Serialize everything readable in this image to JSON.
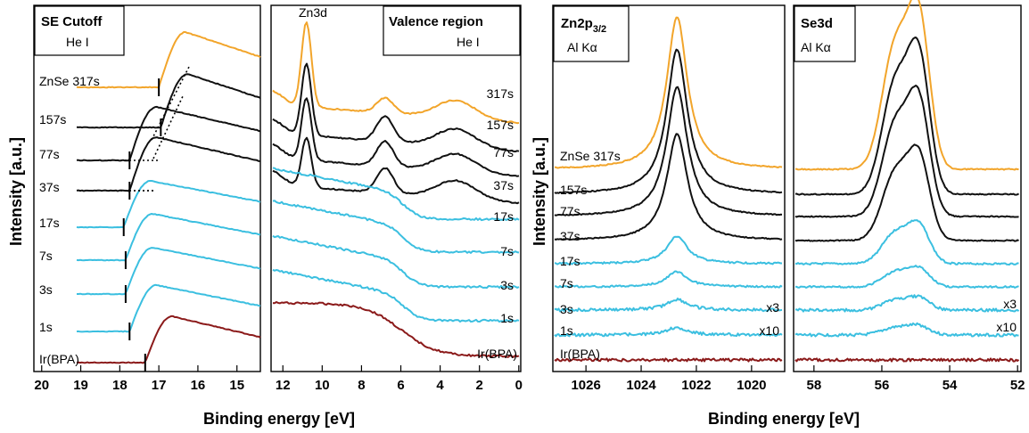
{
  "colors": {
    "orange": "#f2a52b",
    "black": "#111111",
    "cyan": "#3bbfe0",
    "darkred": "#8b1a1a"
  },
  "labels": {
    "ylabel_left": "Intensity [a.u.]",
    "ylabel_right": "Intensity [a.u.]",
    "xlabel_left": "Binding energy [eV]",
    "xlabel_right": "Binding energy [eV]"
  },
  "chart_data": [
    {
      "type": "line",
      "panel": "se-cutoff",
      "title": "SE Cutoff",
      "subtitle": "He I",
      "x_ticks": [
        "20",
        "19",
        "18",
        "17",
        "16",
        "15"
      ],
      "xlim": [
        20.2,
        14.4
      ],
      "series": [
        {
          "name": "ZnSe 317s",
          "color": "orange",
          "cutoff": 17.0
        },
        {
          "name": "157s",
          "color": "black",
          "cutoff": 16.95
        },
        {
          "name": "77s",
          "color": "black",
          "cutoff": 17.75
        },
        {
          "name": "37s",
          "color": "black",
          "cutoff": 17.75
        },
        {
          "name": "17s",
          "color": "cyan",
          "cutoff": 17.9
        },
        {
          "name": "7s",
          "color": "cyan",
          "cutoff": 17.85
        },
        {
          "name": "3s",
          "color": "cyan",
          "cutoff": 17.85
        },
        {
          "name": "1s",
          "color": "cyan",
          "cutoff": 17.75
        },
        {
          "name": "Ir(BPA)",
          "color": "darkred",
          "cutoff": 17.35
        }
      ]
    },
    {
      "type": "line",
      "panel": "valence",
      "title": "Valence region",
      "subtitle": "He I",
      "annotation": "Zn3d",
      "x_ticks": [
        "12",
        "10",
        "8",
        "6",
        "4",
        "2",
        "0"
      ],
      "xlim": [
        12.6,
        -0.1
      ],
      "series": [
        {
          "name": "317s",
          "color": "orange"
        },
        {
          "name": "157s",
          "color": "black"
        },
        {
          "name": "77s",
          "color": "black"
        },
        {
          "name": "37s",
          "color": "black"
        },
        {
          "name": "17s",
          "color": "cyan"
        },
        {
          "name": "7s",
          "color": "cyan"
        },
        {
          "name": "3s",
          "color": "cyan"
        },
        {
          "name": "1s",
          "color": "cyan"
        },
        {
          "name": "Ir(BPA)",
          "color": "darkred"
        }
      ]
    },
    {
      "type": "line",
      "panel": "zn2p",
      "title_main": "Zn2p",
      "title_sub": "3/2",
      "subtitle": "Al Kα",
      "x_ticks": [
        "1026",
        "1024",
        "1022",
        "1020"
      ],
      "xlim": [
        1027.2,
        1018.8
      ],
      "peak": 1022.7,
      "scale_labels": [
        "x3",
        "x10"
      ],
      "series": [
        {
          "name": "ZnSe 317s",
          "color": "orange",
          "amplitude": 1.0
        },
        {
          "name": "157s",
          "color": "black",
          "amplitude": 0.95
        },
        {
          "name": "77s",
          "color": "black",
          "amplitude": 0.85
        },
        {
          "name": "37s",
          "color": "black",
          "amplitude": 0.7
        },
        {
          "name": "17s",
          "color": "cyan",
          "amplitude": 0.18
        },
        {
          "name": "7s",
          "color": "cyan",
          "amplitude": 0.1
        },
        {
          "name": "3s",
          "color": "cyan",
          "amplitude": 0.07
        },
        {
          "name": "1s",
          "color": "cyan",
          "amplitude": 0.05
        },
        {
          "name": "Ir(BPA)",
          "color": "darkred",
          "amplitude": 0.0
        }
      ]
    },
    {
      "type": "line",
      "panel": "se3d",
      "title": "Se3d",
      "subtitle": "Al Kα",
      "x_ticks": [
        "58",
        "56",
        "54",
        "52"
      ],
      "xlim": [
        58.6,
        51.9
      ],
      "peaks": [
        55.6,
        54.9
      ],
      "scale_labels": [
        "x3",
        "x10"
      ],
      "series": [
        {
          "name": "ZnSe 317s",
          "color": "orange",
          "amplitude": 1.0
        },
        {
          "name": "157s",
          "color": "black",
          "amplitude": 0.9
        },
        {
          "name": "77s",
          "color": "black",
          "amplitude": 0.75
        },
        {
          "name": "37s",
          "color": "black",
          "amplitude": 0.55
        },
        {
          "name": "17s",
          "color": "cyan",
          "amplitude": 0.25
        },
        {
          "name": "7s",
          "color": "cyan",
          "amplitude": 0.12
        },
        {
          "name": "3s",
          "color": "cyan",
          "amplitude": 0.08
        },
        {
          "name": "1s",
          "color": "cyan",
          "amplitude": 0.06
        },
        {
          "name": "Ir(BPA)",
          "color": "darkred",
          "amplitude": 0.0
        }
      ]
    }
  ]
}
